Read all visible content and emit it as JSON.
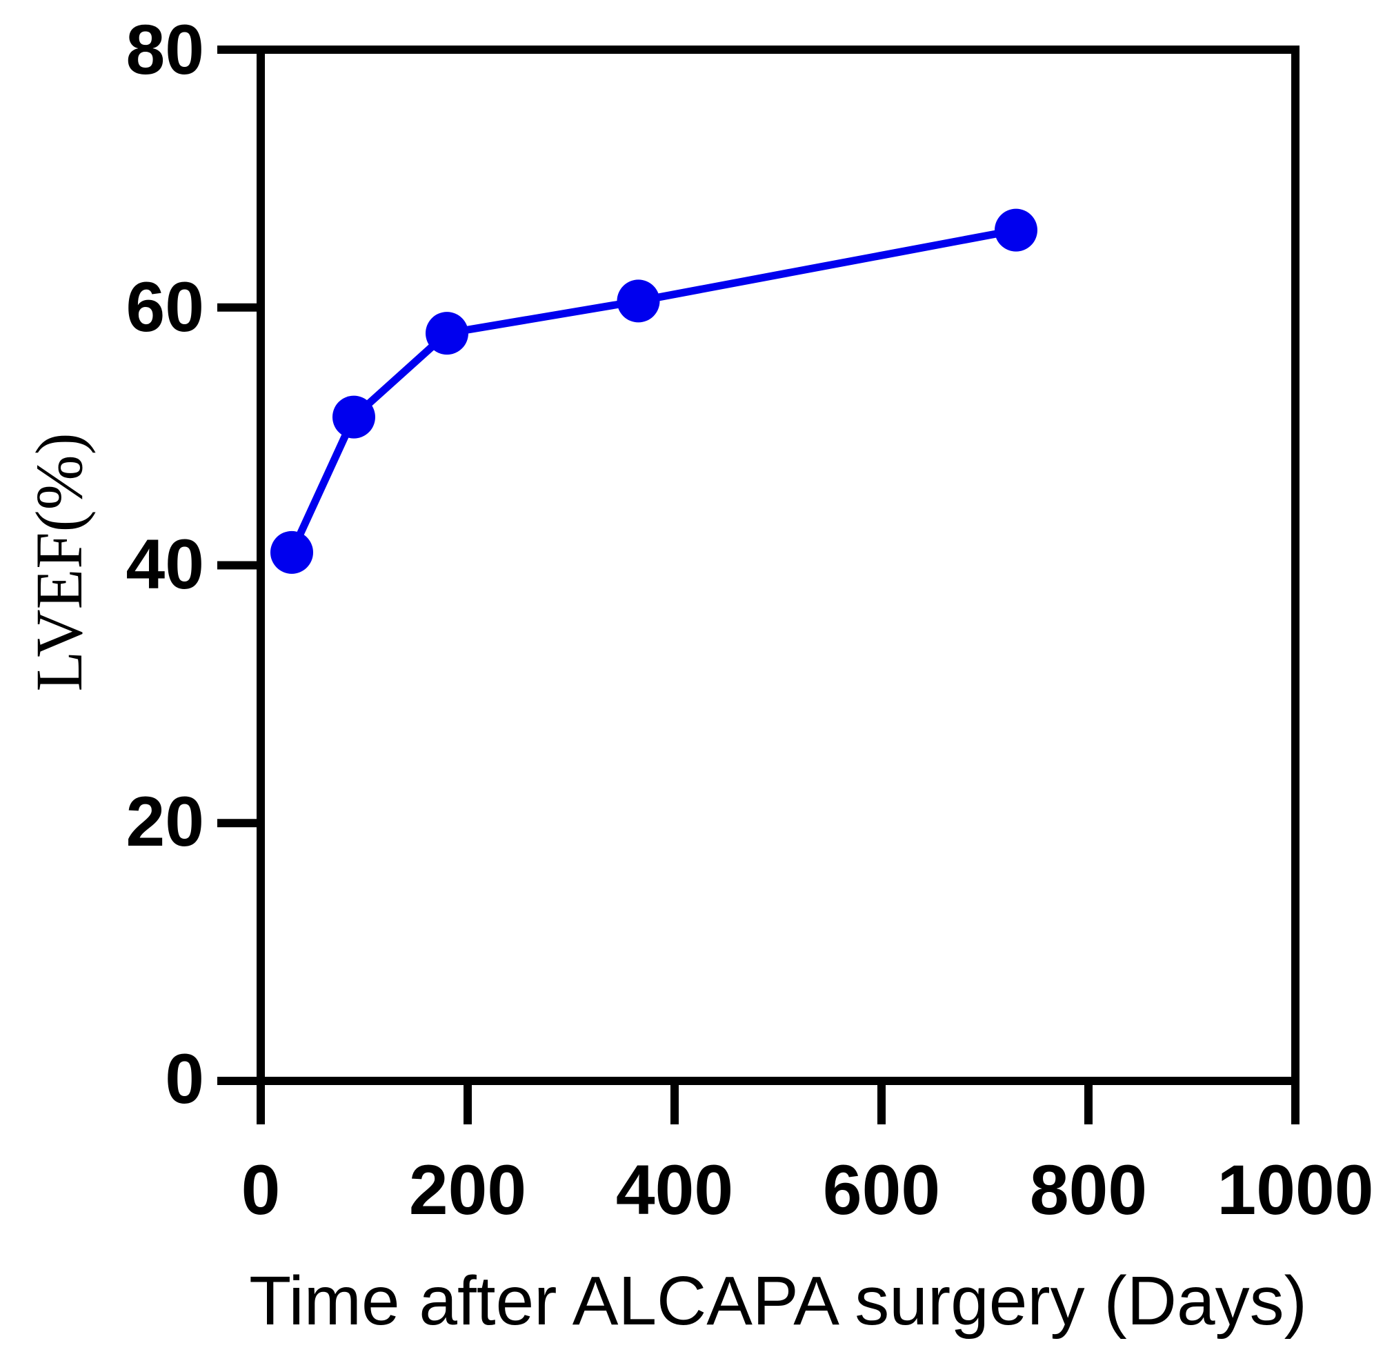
{
  "chart_data": {
    "type": "line",
    "title": "",
    "xlabel": "Time after ALCAPA surgery (Days)",
    "ylabel": "LVEF(%)",
    "xlim": [
      0,
      1000
    ],
    "ylim": [
      0,
      80
    ],
    "x_ticks": [
      "0",
      "200",
      "400",
      "600",
      "800",
      "1000"
    ],
    "y_ticks": [
      "0",
      "20",
      "40",
      "60",
      "80"
    ],
    "grid": false,
    "legend": "none",
    "series": [
      {
        "color": "#0000ee",
        "x": [
          30,
          90,
          180,
          365,
          730
        ],
        "y": [
          41,
          51.5,
          58,
          60.5,
          66
        ]
      }
    ]
  }
}
